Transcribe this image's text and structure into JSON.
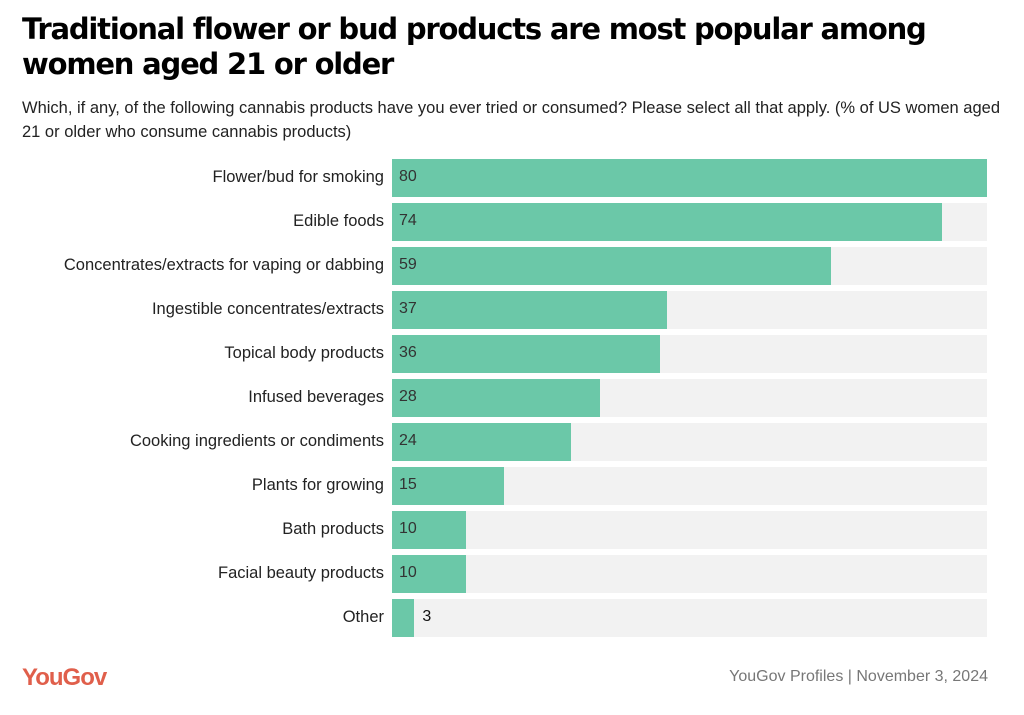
{
  "title": "Traditional flower or bud products are most popular among women aged 21 or older",
  "subtitle": "Which, if any, of the following cannabis products have you ever tried or consumed? Please select all that apply. (% of US women aged 21 or older who consume cannabis products)",
  "footer": {
    "logo": "YouGov",
    "source": "YouGov Profiles | November 3, 2024"
  },
  "colors": {
    "bar": "#6bc8a8",
    "track": "#f2f2f2",
    "logo": "#e05f4b"
  },
  "chart_data": {
    "type": "bar",
    "orientation": "horizontal",
    "title": "Traditional flower or bud products are most popular among women aged 21 or older",
    "xlabel": "",
    "ylabel": "",
    "xlim": [
      0,
      80
    ],
    "categories": [
      "Flower/bud for smoking",
      "Edible foods",
      "Concentrates/extracts for vaping or dabbing",
      "Ingestible concentrates/extracts",
      "Topical body products",
      "Infused beverages",
      "Cooking ingredients or condiments",
      "Plants for growing",
      "Bath products",
      "Facial beauty products",
      "Other"
    ],
    "values": [
      80,
      74,
      59,
      37,
      36,
      28,
      24,
      15,
      10,
      10,
      3
    ]
  }
}
